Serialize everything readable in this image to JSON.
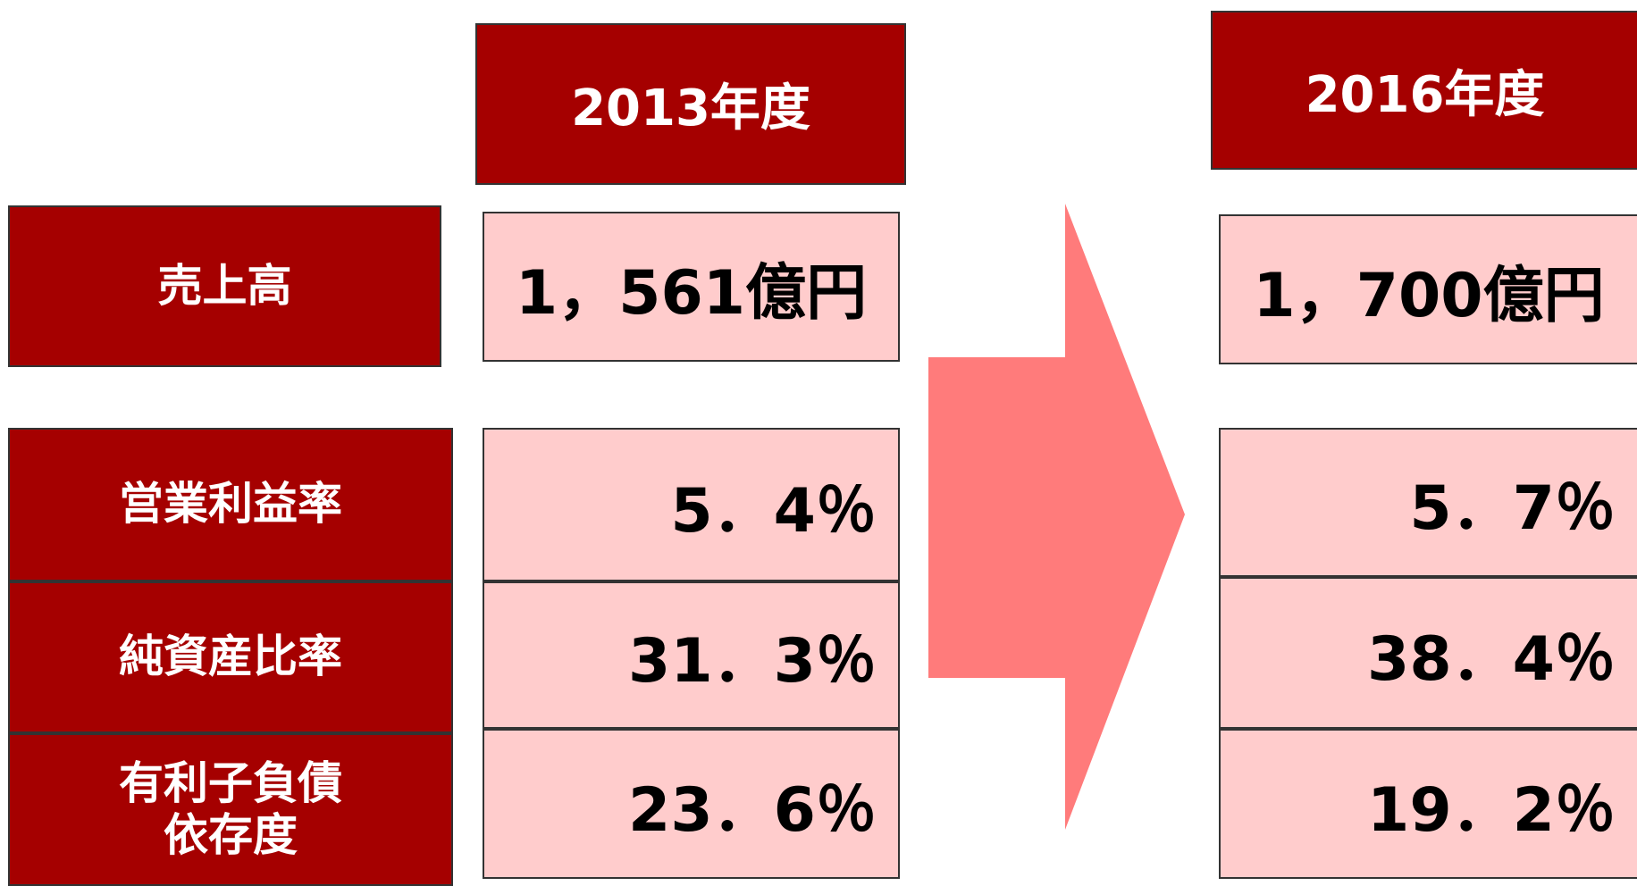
{
  "columns": [
    "2013年度",
    "2016年度"
  ],
  "rows": [
    {
      "label": "売上高",
      "values": [
        "1，561億円",
        "1，700億円"
      ]
    },
    {
      "label": "営業利益率",
      "values": [
        "5．4％",
        "5．7％"
      ]
    },
    {
      "label": "純資産比率",
      "values": [
        "31．3％",
        "38．4％"
      ]
    },
    {
      "label": "有利子負債\n依存度",
      "values": [
        "23．6％",
        "19．2％"
      ]
    }
  ]
}
